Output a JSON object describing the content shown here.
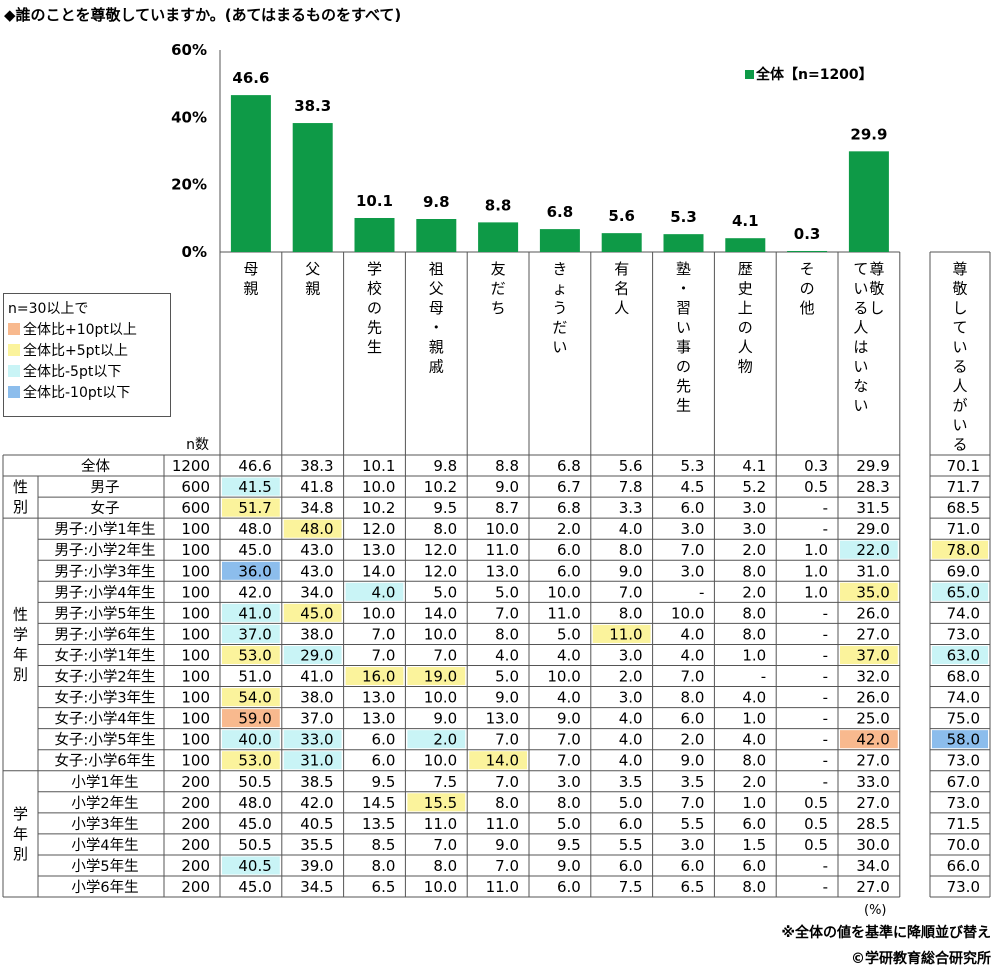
{
  "title": "◆誰のことを尊敬していますか。(あてはまるものをすべて)",
  "chart_data": {
    "type": "bar",
    "yticks": [
      "60%",
      "40%",
      "20%",
      "0%"
    ],
    "ylim": [
      0,
      60
    ],
    "legend": "全体【n=1200】",
    "legend_position": "top-right",
    "series_color": "#0e9a47",
    "categories": [
      "母親",
      "父親",
      "学校の先生",
      "祖父母・親戚",
      "友だち",
      "きょうだい",
      "有名人",
      "塾・習い事の先生",
      "歴史上の人物",
      "その他",
      "尊敬している人はいない"
    ],
    "values": [
      46.6,
      38.3,
      10.1,
      9.8,
      8.8,
      6.8,
      5.6,
      5.3,
      4.1,
      0.3,
      29.9
    ],
    "value_labels": [
      "46.6",
      "38.3",
      "10.1",
      "9.8",
      "8.8",
      "6.8",
      "5.6",
      "5.3",
      "4.1",
      "0.3",
      "29.9"
    ]
  },
  "highlight_legend": {
    "title": "n=30以上で",
    "items": [
      {
        "label": "全体比+10pt以上",
        "color": "#f8b98e"
      },
      {
        "label": "全体比+5pt以上",
        "color": "#fbf39c"
      },
      {
        "label": "全体比-5pt以下",
        "color": "#c9f4f6"
      },
      {
        "label": "全体比-10pt以下",
        "color": "#8cbdec"
      }
    ]
  },
  "table": {
    "n_header": "n数",
    "extra_column_header": "尊敬している人がいる",
    "groups": [
      {
        "label": "",
        "rows": [
          0
        ]
      },
      {
        "label": "性別",
        "rows": [
          1,
          2
        ]
      },
      {
        "label": "性学年別",
        "rows": [
          3,
          4,
          5,
          6,
          7,
          8,
          9,
          10,
          11,
          12,
          13,
          14
        ]
      },
      {
        "label": "学年別",
        "rows": [
          15,
          16,
          17,
          18,
          19,
          20
        ]
      }
    ],
    "rows": [
      {
        "label": "全体",
        "n": "1200",
        "values": [
          "46.6",
          "38.3",
          "10.1",
          "9.8",
          "8.8",
          "6.8",
          "5.6",
          "5.3",
          "4.1",
          "0.3",
          "29.9"
        ],
        "extra": "70.1",
        "hl": [],
        "extra_hl": ""
      },
      {
        "label": "男子",
        "n": "600",
        "values": [
          "41.5",
          "41.8",
          "10.0",
          "10.2",
          "9.0",
          "6.7",
          "7.8",
          "4.5",
          "5.2",
          "0.5",
          "28.3"
        ],
        "extra": "71.7",
        "hl": [
          [
            0,
            "m5"
          ]
        ],
        "extra_hl": ""
      },
      {
        "label": "女子",
        "n": "600",
        "values": [
          "51.7",
          "34.8",
          "10.2",
          "9.5",
          "8.7",
          "6.8",
          "3.3",
          "6.0",
          "3.0",
          "-",
          "31.5"
        ],
        "extra": "68.5",
        "hl": [
          [
            0,
            "p5"
          ]
        ],
        "extra_hl": ""
      },
      {
        "label": "男子:小学1年生",
        "n": "100",
        "values": [
          "48.0",
          "48.0",
          "12.0",
          "8.0",
          "10.0",
          "2.0",
          "4.0",
          "3.0",
          "3.0",
          "-",
          "29.0"
        ],
        "extra": "71.0",
        "hl": [
          [
            1,
            "p5"
          ]
        ],
        "extra_hl": ""
      },
      {
        "label": "男子:小学2年生",
        "n": "100",
        "values": [
          "45.0",
          "43.0",
          "13.0",
          "12.0",
          "11.0",
          "6.0",
          "8.0",
          "7.0",
          "2.0",
          "1.0",
          "22.0"
        ],
        "extra": "78.0",
        "hl": [
          [
            10,
            "m5"
          ]
        ],
        "extra_hl": "p5"
      },
      {
        "label": "男子:小学3年生",
        "n": "100",
        "values": [
          "36.0",
          "43.0",
          "14.0",
          "12.0",
          "13.0",
          "6.0",
          "9.0",
          "3.0",
          "8.0",
          "1.0",
          "31.0"
        ],
        "extra": "69.0",
        "hl": [
          [
            0,
            "m10"
          ]
        ],
        "extra_hl": ""
      },
      {
        "label": "男子:小学4年生",
        "n": "100",
        "values": [
          "42.0",
          "34.0",
          "4.0",
          "5.0",
          "5.0",
          "10.0",
          "7.0",
          "-",
          "2.0",
          "1.0",
          "35.0"
        ],
        "extra": "65.0",
        "hl": [
          [
            2,
            "m5"
          ],
          [
            10,
            "p5"
          ]
        ],
        "extra_hl": "m5"
      },
      {
        "label": "男子:小学5年生",
        "n": "100",
        "values": [
          "41.0",
          "45.0",
          "10.0",
          "14.0",
          "7.0",
          "11.0",
          "8.0",
          "10.0",
          "8.0",
          "-",
          "26.0"
        ],
        "extra": "74.0",
        "hl": [
          [
            0,
            "m5"
          ],
          [
            1,
            "p5"
          ]
        ],
        "extra_hl": ""
      },
      {
        "label": "男子:小学6年生",
        "n": "100",
        "values": [
          "37.0",
          "38.0",
          "7.0",
          "10.0",
          "8.0",
          "5.0",
          "11.0",
          "4.0",
          "8.0",
          "-",
          "27.0"
        ],
        "extra": "73.0",
        "hl": [
          [
            0,
            "m5"
          ],
          [
            6,
            "p5"
          ]
        ],
        "extra_hl": ""
      },
      {
        "label": "女子:小学1年生",
        "n": "100",
        "values": [
          "53.0",
          "29.0",
          "7.0",
          "7.0",
          "4.0",
          "4.0",
          "3.0",
          "4.0",
          "1.0",
          "-",
          "37.0"
        ],
        "extra": "63.0",
        "hl": [
          [
            0,
            "p5"
          ],
          [
            1,
            "m5"
          ],
          [
            10,
            "p5"
          ]
        ],
        "extra_hl": "m5"
      },
      {
        "label": "女子:小学2年生",
        "n": "100",
        "values": [
          "51.0",
          "41.0",
          "16.0",
          "19.0",
          "5.0",
          "10.0",
          "2.0",
          "7.0",
          "-",
          "-",
          "32.0"
        ],
        "extra": "68.0",
        "hl": [
          [
            2,
            "p5"
          ],
          [
            3,
            "p5"
          ]
        ],
        "extra_hl": ""
      },
      {
        "label": "女子:小学3年生",
        "n": "100",
        "values": [
          "54.0",
          "38.0",
          "13.0",
          "10.0",
          "9.0",
          "4.0",
          "3.0",
          "8.0",
          "4.0",
          "-",
          "26.0"
        ],
        "extra": "74.0",
        "hl": [
          [
            0,
            "p5"
          ]
        ],
        "extra_hl": ""
      },
      {
        "label": "女子:小学4年生",
        "n": "100",
        "values": [
          "59.0",
          "37.0",
          "13.0",
          "9.0",
          "13.0",
          "9.0",
          "4.0",
          "6.0",
          "1.0",
          "-",
          "25.0"
        ],
        "extra": "75.0",
        "hl": [
          [
            0,
            "p10"
          ]
        ],
        "extra_hl": ""
      },
      {
        "label": "女子:小学5年生",
        "n": "100",
        "values": [
          "40.0",
          "33.0",
          "6.0",
          "2.0",
          "7.0",
          "7.0",
          "4.0",
          "2.0",
          "4.0",
          "-",
          "42.0"
        ],
        "extra": "58.0",
        "hl": [
          [
            0,
            "m5"
          ],
          [
            1,
            "m5"
          ],
          [
            3,
            "m5"
          ],
          [
            10,
            "p10"
          ]
        ],
        "extra_hl": "m10"
      },
      {
        "label": "女子:小学6年生",
        "n": "100",
        "values": [
          "53.0",
          "31.0",
          "6.0",
          "10.0",
          "14.0",
          "7.0",
          "4.0",
          "9.0",
          "8.0",
          "-",
          "27.0"
        ],
        "extra": "73.0",
        "hl": [
          [
            0,
            "p5"
          ],
          [
            1,
            "m5"
          ],
          [
            4,
            "p5"
          ]
        ],
        "extra_hl": ""
      },
      {
        "label": "小学1年生",
        "n": "200",
        "values": [
          "50.5",
          "38.5",
          "9.5",
          "7.5",
          "7.0",
          "3.0",
          "3.5",
          "3.5",
          "2.0",
          "-",
          "33.0"
        ],
        "extra": "67.0",
        "hl": [],
        "extra_hl": ""
      },
      {
        "label": "小学2年生",
        "n": "200",
        "values": [
          "48.0",
          "42.0",
          "14.5",
          "15.5",
          "8.0",
          "8.0",
          "5.0",
          "7.0",
          "1.0",
          "0.5",
          "27.0"
        ],
        "extra": "73.0",
        "hl": [
          [
            3,
            "p5"
          ]
        ],
        "extra_hl": ""
      },
      {
        "label": "小学3年生",
        "n": "200",
        "values": [
          "45.0",
          "40.5",
          "13.5",
          "11.0",
          "11.0",
          "5.0",
          "6.0",
          "5.5",
          "6.0",
          "0.5",
          "28.5"
        ],
        "extra": "71.5",
        "hl": [],
        "extra_hl": ""
      },
      {
        "label": "小学4年生",
        "n": "200",
        "values": [
          "50.5",
          "35.5",
          "8.5",
          "7.0",
          "9.0",
          "9.5",
          "5.5",
          "3.0",
          "1.5",
          "0.5",
          "30.0"
        ],
        "extra": "70.0",
        "hl": [],
        "extra_hl": ""
      },
      {
        "label": "小学5年生",
        "n": "200",
        "values": [
          "40.5",
          "39.0",
          "8.0",
          "8.0",
          "7.0",
          "9.0",
          "6.0",
          "6.0",
          "6.0",
          "-",
          "34.0"
        ],
        "extra": "66.0",
        "hl": [
          [
            0,
            "m5"
          ]
        ],
        "extra_hl": ""
      },
      {
        "label": "小学6年生",
        "n": "200",
        "values": [
          "45.0",
          "34.5",
          "6.5",
          "10.0",
          "11.0",
          "6.0",
          "7.5",
          "6.5",
          "8.0",
          "-",
          "27.0"
        ],
        "extra": "73.0",
        "hl": [],
        "extra_hl": ""
      }
    ],
    "unit_note": "(%)"
  },
  "hl_colors": {
    "p10": "#f8b98e",
    "p5": "#fbf39c",
    "m5": "#c9f4f6",
    "m10": "#8cbdec"
  },
  "sort_note": "※全体の値を基準に降順並び替え",
  "copyright": "©学研教育総合研究所"
}
